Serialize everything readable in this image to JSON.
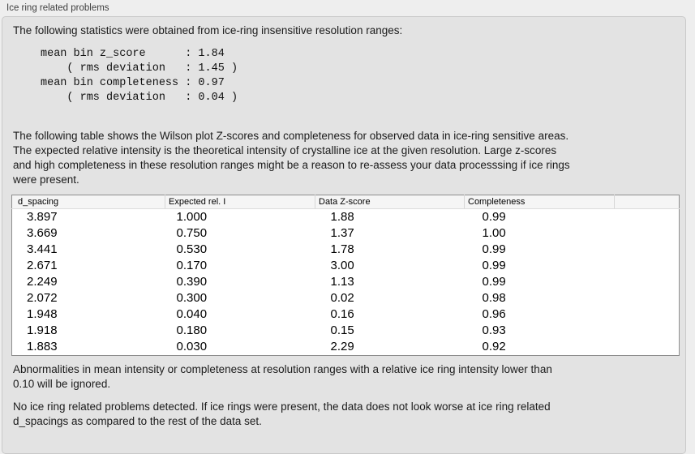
{
  "panel": {
    "title": "Ice ring related problems"
  },
  "intro_text": "The following statistics were obtained from ice-ring insensitive resolution ranges:",
  "stats_block": "mean bin z_score      : 1.84\n    ( rms deviation   : 1.45 )\nmean bin completeness : 0.97\n    ( rms deviation   : 0.04 )",
  "table_intro": "The following table shows the Wilson plot Z-scores and completeness for observed data in ice-ring sensitive areas.\nThe expected relative intensity is the theoretical intensity of crystalline ice at the given resolution. Large z-scores\nand high completeness in these resolution ranges might be a reason to re-assess your data processsing if ice rings\nwere present.",
  "table": {
    "columns": [
      "d_spacing",
      "Expected rel. I",
      "Data Z-score",
      "Completeness",
      ""
    ],
    "rows": [
      {
        "d_spacing": "3.897",
        "expected_rel_i": "1.000",
        "data_z_score": "1.88",
        "completeness": "0.99"
      },
      {
        "d_spacing": "3.669",
        "expected_rel_i": "0.750",
        "data_z_score": "1.37",
        "completeness": "1.00"
      },
      {
        "d_spacing": "3.441",
        "expected_rel_i": "0.530",
        "data_z_score": "1.78",
        "completeness": "0.99"
      },
      {
        "d_spacing": "2.671",
        "expected_rel_i": "0.170",
        "data_z_score": "3.00",
        "completeness": "0.99"
      },
      {
        "d_spacing": "2.249",
        "expected_rel_i": "0.390",
        "data_z_score": "1.13",
        "completeness": "0.99"
      },
      {
        "d_spacing": "2.072",
        "expected_rel_i": "0.300",
        "data_z_score": "0.02",
        "completeness": "0.98"
      },
      {
        "d_spacing": "1.948",
        "expected_rel_i": "0.040",
        "data_z_score": "0.16",
        "completeness": "0.96"
      },
      {
        "d_spacing": "1.918",
        "expected_rel_i": "0.180",
        "data_z_score": "0.15",
        "completeness": "0.93"
      },
      {
        "d_spacing": "1.883",
        "expected_rel_i": "0.030",
        "data_z_score": "2.29",
        "completeness": "0.92"
      }
    ]
  },
  "ignore_note": "Abnormalities in mean intensity or completeness at resolution ranges with a relative ice ring intensity lower than\n0.10 will be ignored.",
  "conclusion": "No ice ring related problems detected. If ice rings were present, the data does not look worse at ice ring related\nd_spacings as compared to the rest of the data set.",
  "colors": {
    "outer_bg": "#eeeeee",
    "panel_bg": "#e3e3e3",
    "panel_border": "#c9c9c9",
    "table_border": "#8e8e8e",
    "header_bg": "#f5f5f5"
  }
}
